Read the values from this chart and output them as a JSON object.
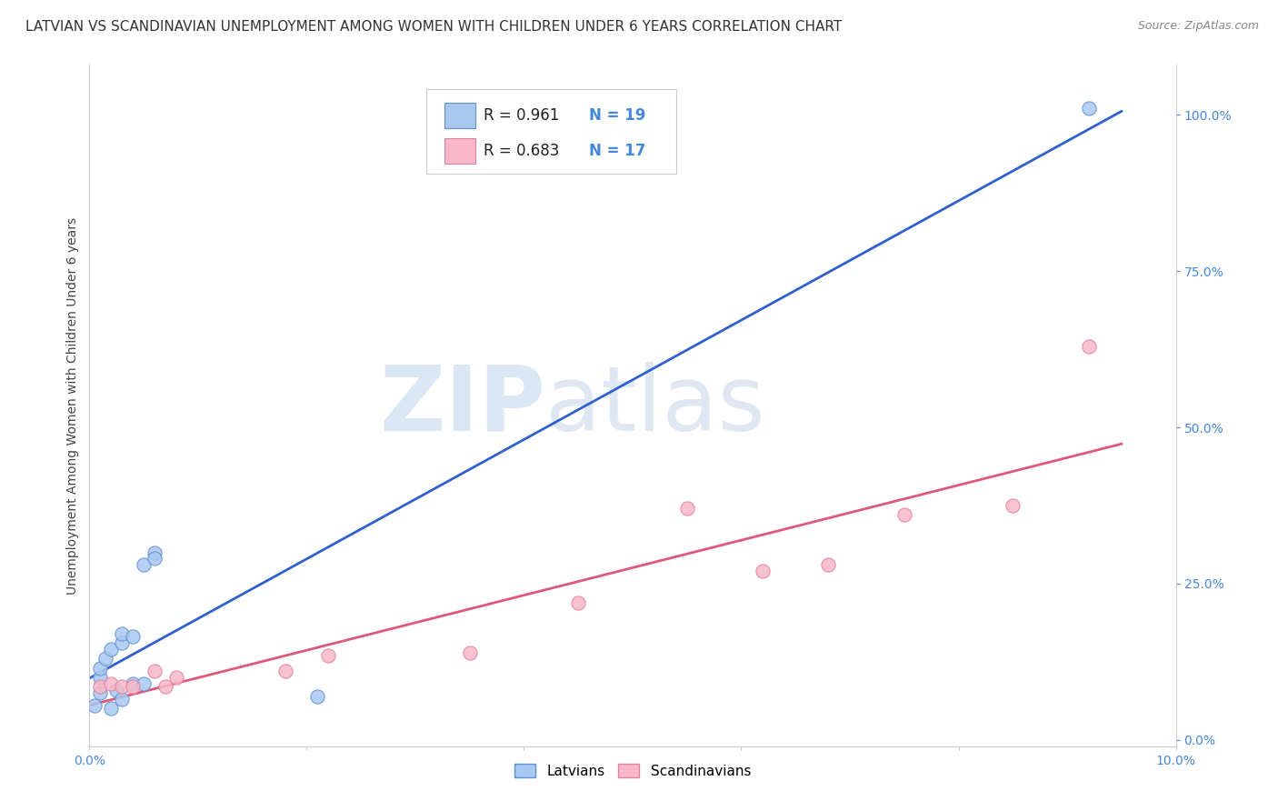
{
  "title": "LATVIAN VS SCANDINAVIAN UNEMPLOYMENT AMONG WOMEN WITH CHILDREN UNDER 6 YEARS CORRELATION CHART",
  "source": "Source: ZipAtlas.com",
  "ylabel": "Unemployment Among Women with Children Under 6 years",
  "xlim": [
    0.0,
    0.1
  ],
  "ylim": [
    -0.01,
    1.08
  ],
  "right_yticks": [
    0.0,
    0.25,
    0.5,
    0.75,
    1.0
  ],
  "right_yticklabels": [
    "0.0%",
    "25.0%",
    "50.0%",
    "75.0%",
    "100.0%"
  ],
  "xticks": [
    0.0,
    0.02,
    0.04,
    0.06,
    0.08,
    0.1
  ],
  "xticklabels": [
    "0.0%",
    "",
    "",
    "",
    "",
    "10.0%"
  ],
  "latvian_x": [
    0.0005,
    0.001,
    0.001,
    0.001,
    0.0015,
    0.002,
    0.002,
    0.0025,
    0.003,
    0.003,
    0.003,
    0.004,
    0.004,
    0.005,
    0.005,
    0.006,
    0.006,
    0.021,
    0.092
  ],
  "latvian_y": [
    0.055,
    0.075,
    0.1,
    0.115,
    0.13,
    0.05,
    0.145,
    0.08,
    0.065,
    0.155,
    0.17,
    0.09,
    0.165,
    0.09,
    0.28,
    0.3,
    0.29,
    0.07,
    1.01
  ],
  "scandinavian_x": [
    0.001,
    0.002,
    0.003,
    0.004,
    0.006,
    0.007,
    0.008,
    0.018,
    0.022,
    0.035,
    0.045,
    0.055,
    0.062,
    0.068,
    0.075,
    0.085,
    0.092
  ],
  "scandinavian_y": [
    0.085,
    0.09,
    0.085,
    0.085,
    0.11,
    0.085,
    0.1,
    0.11,
    0.135,
    0.14,
    0.22,
    0.37,
    0.27,
    0.28,
    0.36,
    0.375,
    0.63
  ],
  "latvian_color": "#a8c8f0",
  "latvian_edge": "#6090d0",
  "scandinavian_color": "#f8b8c8",
  "scandinavian_edge": "#e080a0",
  "latvian_line_color": "#3060d0",
  "scandinavian_line_color": "#e05878",
  "legend_R_latvian": "0.961",
  "legend_N_latvian": "19",
  "legend_R_scandinavian": "0.683",
  "legend_N_scandinavian": "17",
  "legend_label_latvian": "Latvians",
  "legend_label_scandinavian": "Scandinavians",
  "watermark_zip": "ZIP",
  "watermark_atlas": "atlas",
  "background_color": "#ffffff",
  "grid_color": "#d0d0d0",
  "title_fontsize": 11,
  "axis_label_fontsize": 10,
  "tick_fontsize": 10,
  "tick_color": "#4488dd"
}
